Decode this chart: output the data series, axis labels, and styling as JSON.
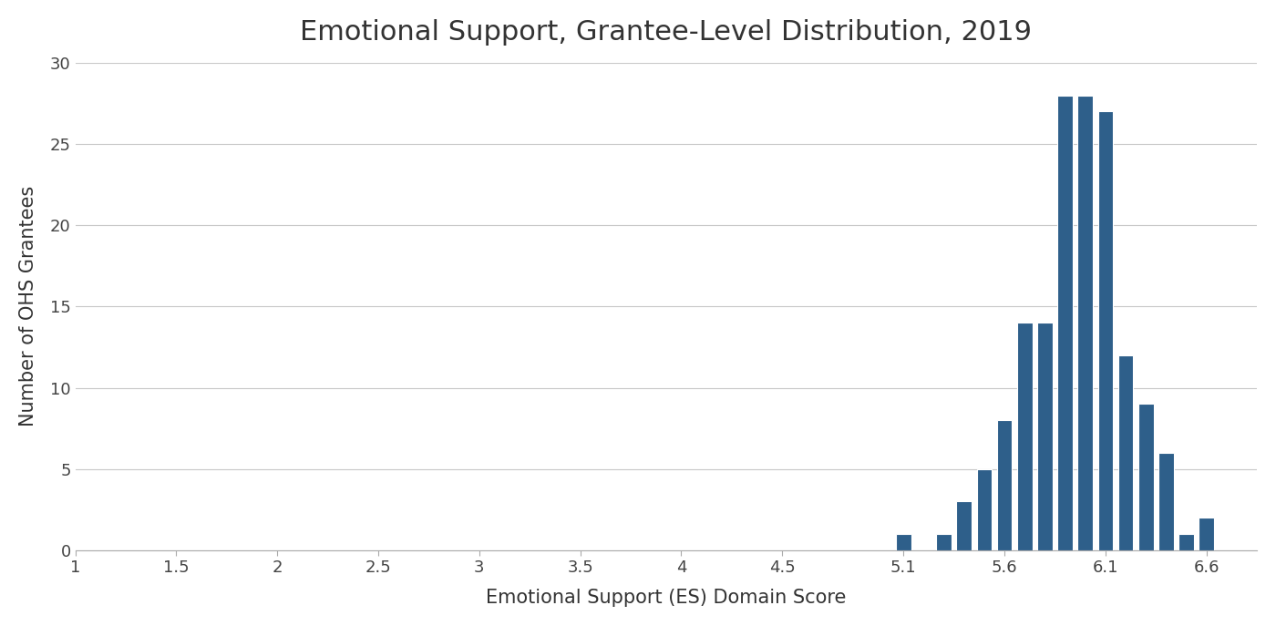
{
  "title": "Emotional Support, Grantee-Level Distribution, 2019",
  "xlabel": "Emotional Support (ES) Domain Score",
  "ylabel": "Number of OHS Grantees",
  "bar_positions": [
    5.1,
    5.3,
    5.4,
    5.5,
    5.6,
    5.7,
    5.8,
    5.9,
    6.0,
    6.1,
    6.2,
    6.3,
    6.4,
    6.5,
    6.6,
    6.7
  ],
  "bar_heights": [
    1,
    1,
    3,
    5,
    8,
    14,
    14,
    28,
    28,
    27,
    12,
    9,
    6,
    1,
    2,
    0
  ],
  "bar_width": 0.075,
  "bar_color": "#2E5F8A",
  "bar_edge_color": "#FFFFFF",
  "bar_edge_width": 0.8,
  "xlim": [
    1.0,
    6.85
  ],
  "ylim": [
    0,
    30
  ],
  "xticks": [
    1.0,
    1.5,
    2.0,
    2.5,
    3.0,
    3.5,
    4.0,
    4.5,
    5.1,
    5.6,
    6.1,
    6.6
  ],
  "xtick_labels": [
    "1",
    "1.5",
    "2",
    "2.5",
    "3",
    "3.5",
    "4",
    "4.5",
    "5.1",
    "5.6",
    "6.1",
    "6.6"
  ],
  "yticks": [
    0,
    5,
    10,
    15,
    20,
    25,
    30
  ],
  "title_fontsize": 22,
  "axis_label_fontsize": 15,
  "tick_fontsize": 13,
  "background_color": "#FFFFFF",
  "grid_color": "#C8C8C8",
  "grid_linewidth": 0.8,
  "spine_color": "#AAAAAA"
}
